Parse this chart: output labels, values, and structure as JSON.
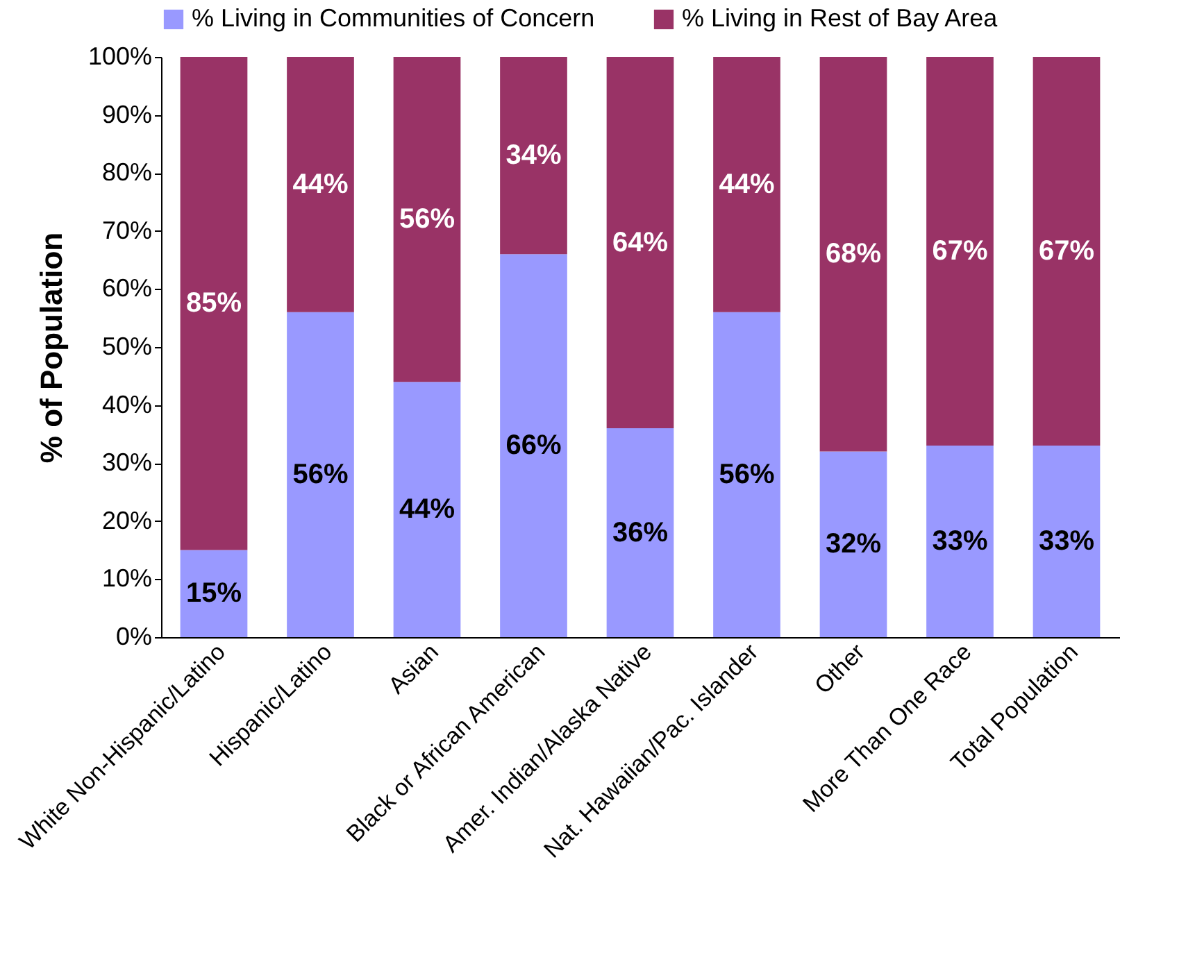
{
  "chart_data": {
    "type": "bar",
    "stacked": true,
    "ylabel": "% of Population",
    "categories": [
      "White Non-Hispanic/Latino",
      "Hispanic/Latino",
      "Asian",
      "Black or African American",
      "Amer. Indian/Alaska Native",
      "Nat. Hawaiian/Pac. Islander",
      "Other",
      "More Than One Race",
      "Total Population"
    ],
    "series": [
      {
        "name": "% Living in Communities of Concern",
        "color": "#9999ff",
        "values": [
          15,
          56,
          44,
          66,
          36,
          56,
          32,
          33,
          33
        ],
        "value_labels": [
          "15%",
          "56%",
          "44%",
          "66%",
          "36%",
          "56%",
          "32%",
          "33%",
          "33%"
        ]
      },
      {
        "name": "% Living in Rest of Bay Area",
        "color": "#993366",
        "values": [
          85,
          44,
          56,
          34,
          64,
          44,
          68,
          67,
          67
        ],
        "value_labels": [
          "85%",
          "44%",
          "56%",
          "34%",
          "64%",
          "44%",
          "68%",
          "67%",
          "67%"
        ]
      }
    ],
    "ylim": [
      0,
      100
    ],
    "yticks": [
      {
        "value": 0,
        "label": "0%"
      },
      {
        "value": 10,
        "label": "10%"
      },
      {
        "value": 20,
        "label": "20%"
      },
      {
        "value": 30,
        "label": "30%"
      },
      {
        "value": 40,
        "label": "40%"
      },
      {
        "value": 50,
        "label": "50%"
      },
      {
        "value": 60,
        "label": "60%"
      },
      {
        "value": 70,
        "label": "70%"
      },
      {
        "value": 80,
        "label": "80%"
      },
      {
        "value": 90,
        "label": "90%"
      },
      {
        "value": 100,
        "label": "100%"
      }
    ],
    "grid": false,
    "legend": "top"
  }
}
